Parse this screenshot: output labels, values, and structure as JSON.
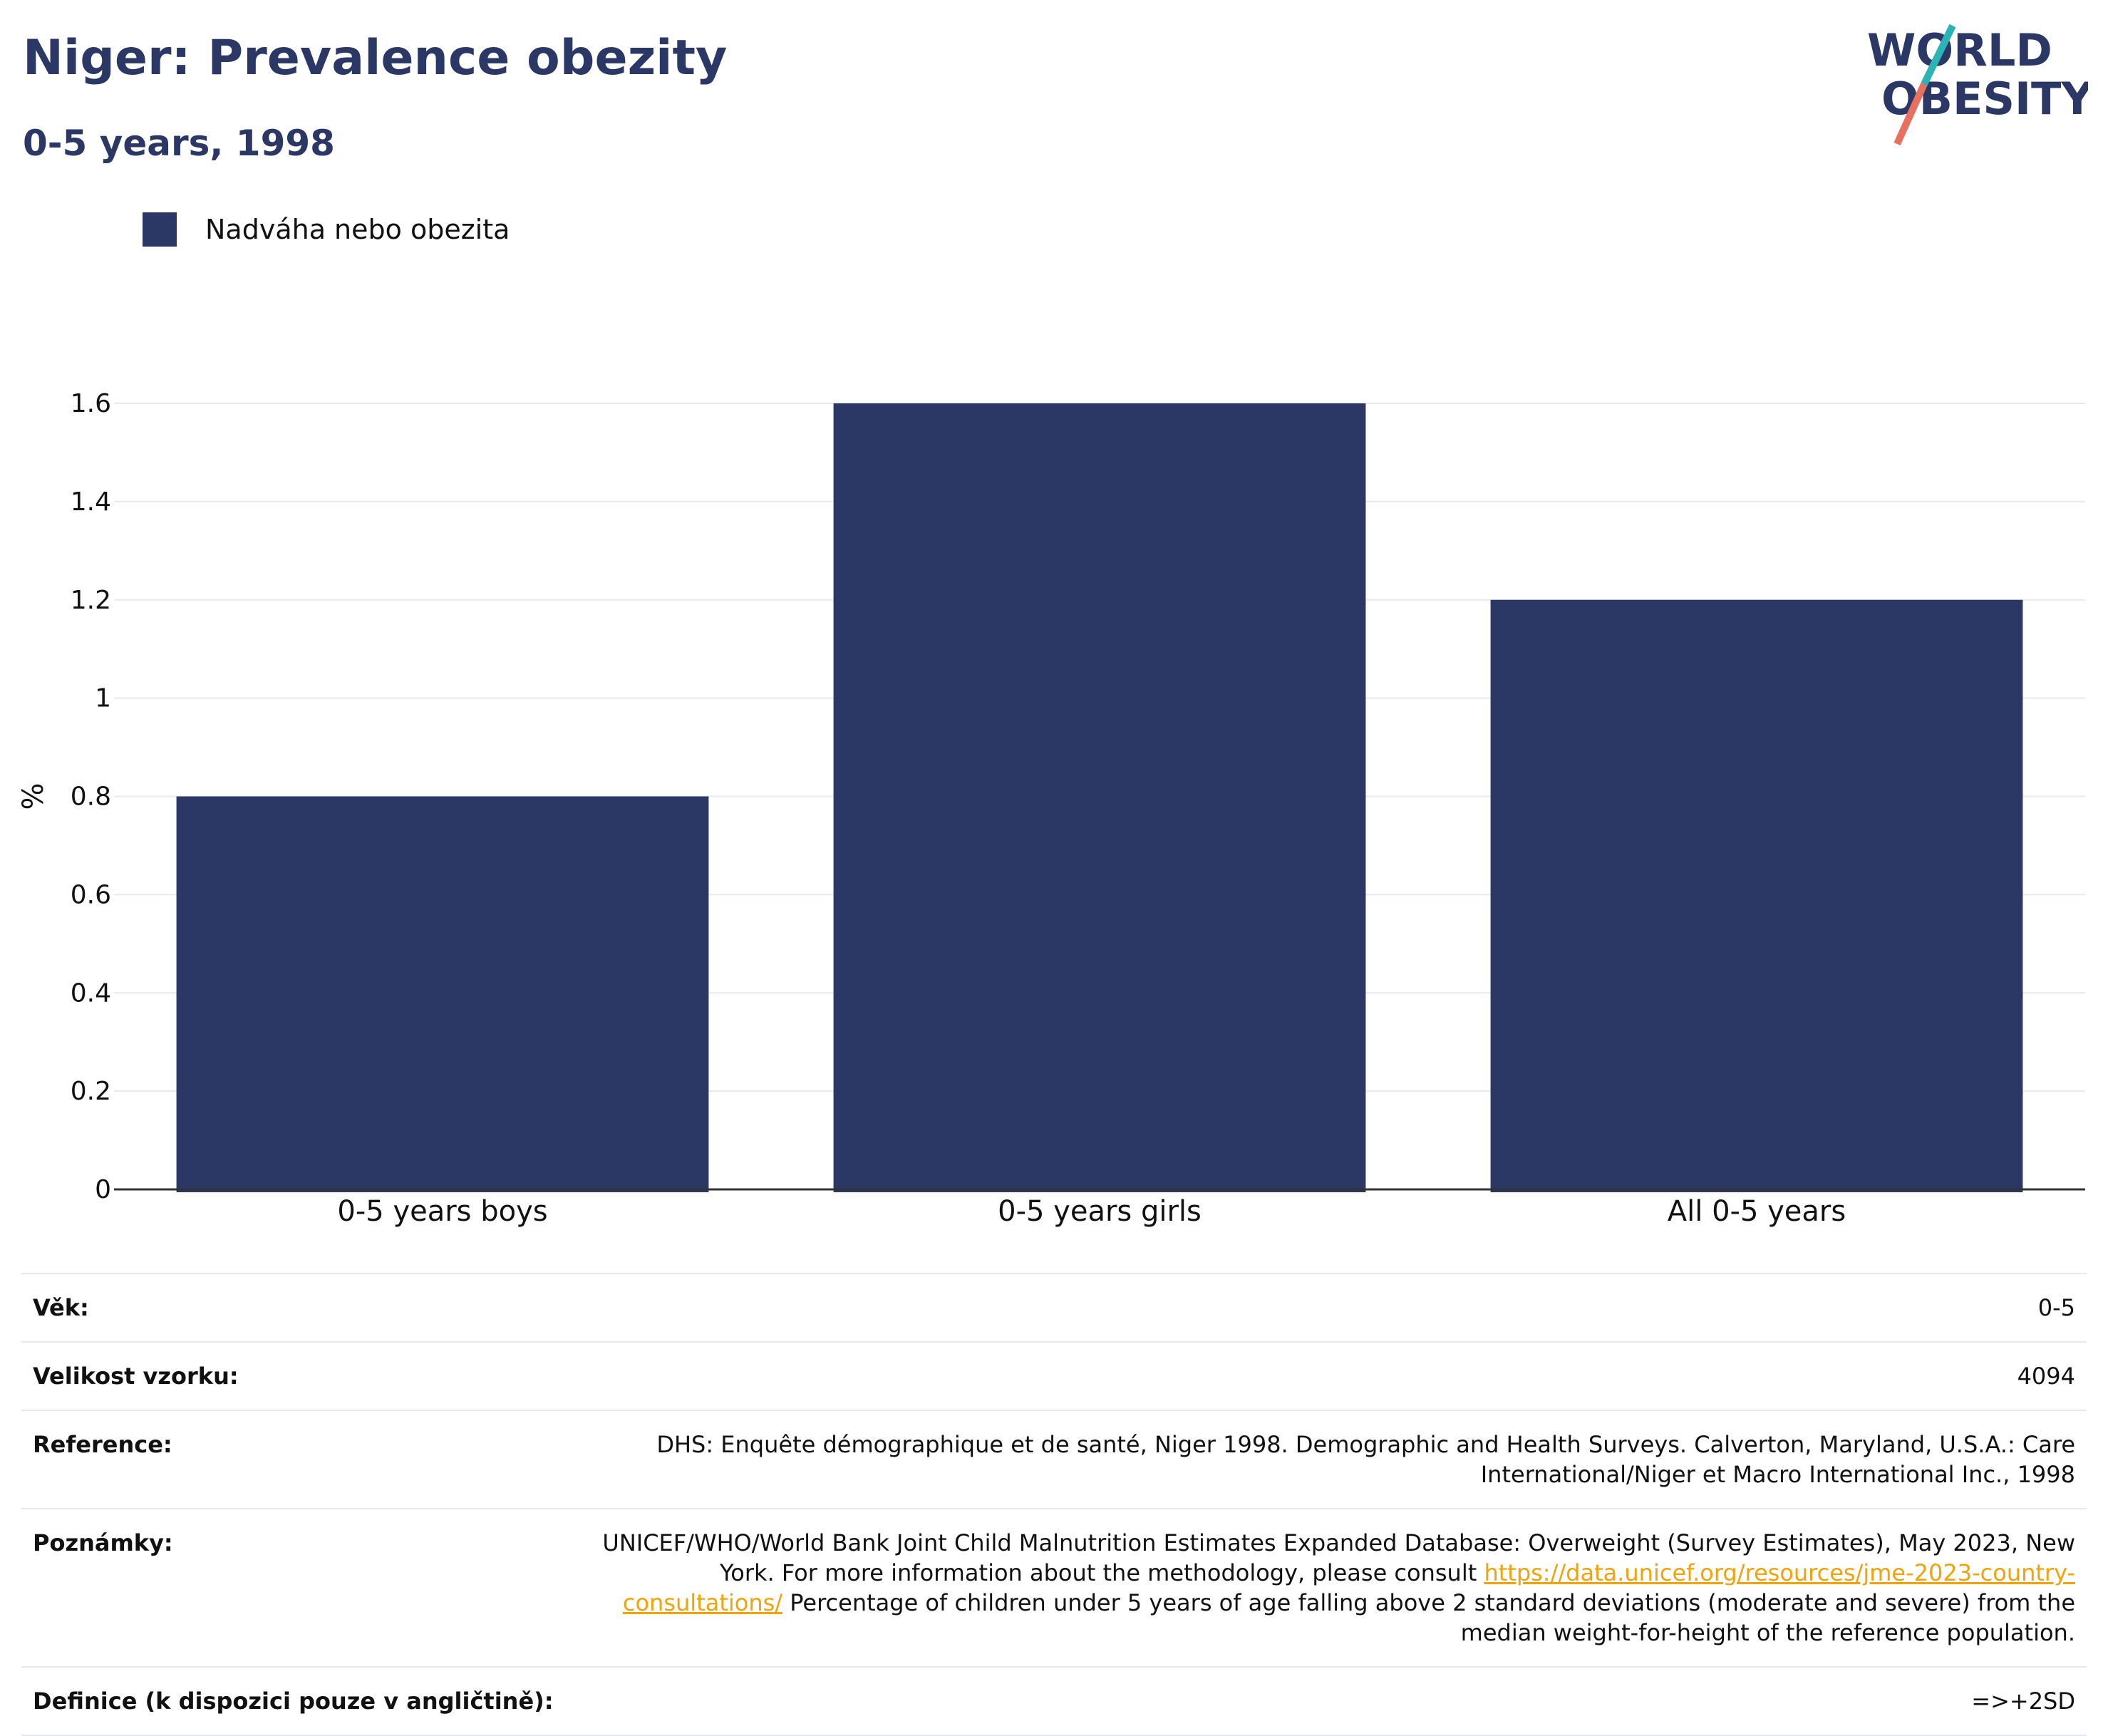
{
  "header": {
    "title": "Niger: Prevalence obezity",
    "subtitle": "0-5 years, 1998"
  },
  "logo": {
    "line1": "WORLD",
    "line2": "OBESITY"
  },
  "colors": {
    "bar": "#2b3765",
    "title": "#2b3765",
    "link": "#f0a30a",
    "logo_teal": "#2bb3b5",
    "logo_coral": "#e8705f"
  },
  "chart_data": {
    "type": "bar",
    "categories": [
      "0-5 years boys",
      "0-5 years girls",
      "All 0-5 years"
    ],
    "series": [
      {
        "name": "Nadváha nebo obezita",
        "values": [
          0.8,
          1.6,
          1.2
        ]
      }
    ],
    "ylabel": "%",
    "ylim": [
      0,
      1.6
    ],
    "yticks": [
      0,
      0.2,
      0.4,
      0.6,
      0.8,
      1,
      1.2,
      1.4,
      1.6
    ],
    "grid": true,
    "legend_position": "top-left"
  },
  "info": {
    "age_label": "Věk:",
    "age_value": "0-5",
    "sample_label": "Velikost vzorku:",
    "sample_value": "4094",
    "reference_label": "Reference:",
    "reference_value": "DHS: Enquête démographique et de santé, Niger 1998. Demographic and Health Surveys. Calverton, Maryland, U.S.A.: Care International/Niger et Macro International Inc., 1998",
    "notes_label": "Poznámky:",
    "notes_text1": "UNICEF/WHO/World Bank Joint Child Malnutrition Estimates Expanded Database: Overweight (Survey Estimates), May 2023, New York. For more information about the methodology, please consult ",
    "notes_link": "https://data.unicef.org/resources/jme-2023-country-consultations/",
    "notes_text2": " Percentage of children under 5 years of age falling above 2 standard deviations (moderate and severe) from the median weight-for-height of the reference population.",
    "definition_label": "Definice (k dispozici pouze v angličtině):",
    "definition_value": "=>+2SD"
  }
}
